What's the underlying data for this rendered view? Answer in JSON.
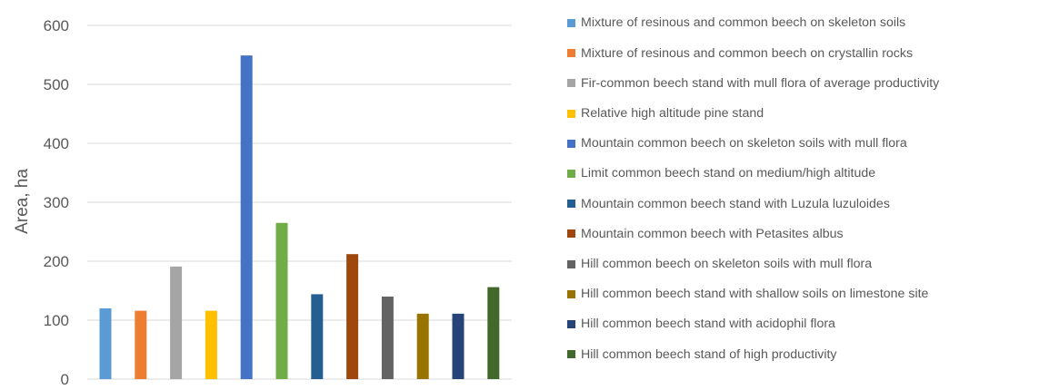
{
  "chart_data": {
    "type": "bar",
    "title": "",
    "xlabel": "",
    "ylabel": "Area, ha",
    "ylim": [
      0,
      600
    ],
    "yticks": [
      0,
      100,
      200,
      300,
      400,
      500,
      600
    ],
    "grid": true,
    "legend_position": "right",
    "series": [
      {
        "name": "Mixture of resinous and common beech on skeleton soils",
        "value": 120,
        "color": "#5B9BD5"
      },
      {
        "name": "Mixture of resinous and common beech on crystallin rocks",
        "value": 116,
        "color": "#ED7D31"
      },
      {
        "name": "Fir-common beech stand with mull flora of average productivity",
        "value": 191,
        "color": "#A5A5A5"
      },
      {
        "name": "Relative high altitude pine stand",
        "value": 116,
        "color": "#FFC000"
      },
      {
        "name": "Mountain common beech on skeleton soils with mull flora",
        "value": 549,
        "color": "#4472C4"
      },
      {
        "name": "Limit common beech stand on medium/high altitude",
        "value": 265,
        "color": "#70AD47"
      },
      {
        "name": "Mountain common beech stand with Luzula luzuloides",
        "value": 144,
        "color": "#255E91"
      },
      {
        "name": "Mountain common beech with Petasites albus",
        "value": 212,
        "color": "#9E480E"
      },
      {
        "name": "Hill common beech on skeleton soils with mull flora",
        "value": 140,
        "color": "#636363"
      },
      {
        "name": "Hill common beech stand with shallow soils on limestone site",
        "value": 111,
        "color": "#997300"
      },
      {
        "name": "Hill common beech stand with acidophil flora",
        "value": 111,
        "color": "#264478"
      },
      {
        "name": "Hill common beech stand of high productivity",
        "value": 156,
        "color": "#43682B"
      }
    ]
  }
}
